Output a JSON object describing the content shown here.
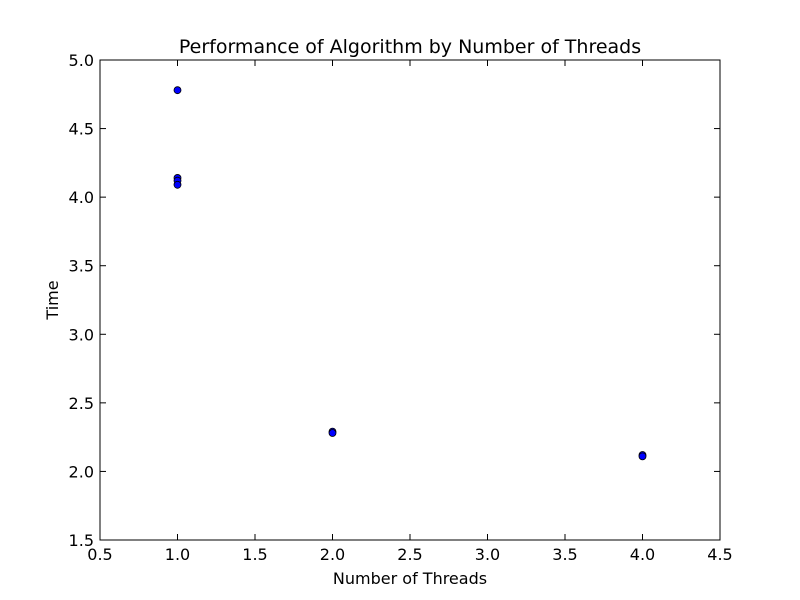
{
  "chart_data": {
    "type": "scatter",
    "title": "Performance of Algorithm by Number of Threads",
    "xlabel": "Number of Threads",
    "ylabel": "Time",
    "xlim": [
      0.5,
      4.5
    ],
    "ylim": [
      1.5,
      5.0
    ],
    "xticks": [
      0.5,
      1.0,
      1.5,
      2.0,
      2.5,
      3.0,
      3.5,
      4.0,
      4.5
    ],
    "yticks": [
      1.5,
      2.0,
      2.5,
      3.0,
      3.5,
      4.0,
      4.5,
      5.0
    ],
    "xtick_labels": [
      "0.5",
      "1.0",
      "1.5",
      "2.0",
      "2.5",
      "3.0",
      "3.5",
      "4.0",
      "4.5"
    ],
    "ytick_labels": [
      "1.5",
      "2.0",
      "2.5",
      "3.0",
      "3.5",
      "4.0",
      "4.5",
      "5.0"
    ],
    "grid": false,
    "marker_color": "#0000ff",
    "series": [
      {
        "x": [
          1,
          1,
          1,
          1,
          2,
          2,
          4,
          4
        ],
        "y": [
          4.78,
          4.14,
          4.12,
          4.09,
          2.29,
          2.28,
          2.12,
          2.11
        ]
      }
    ]
  }
}
